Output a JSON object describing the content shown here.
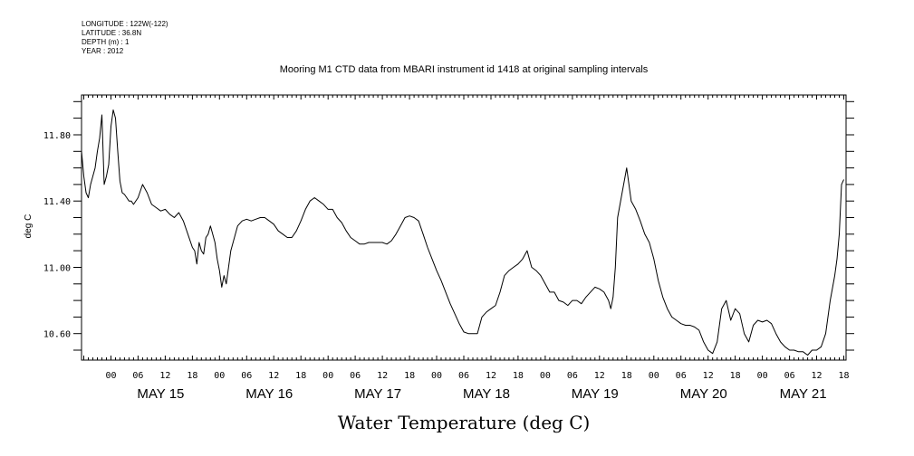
{
  "header": {
    "lines": [
      "LONGITUDE : 122W(-122)",
      "LATITUDE : 36.8N",
      "DEPTH (m) : 1",
      "YEAR : 2012"
    ]
  },
  "chart_data": {
    "type": "line",
    "title": "Mooring M1 CTD data from MBARI instrument id 1418 at original sampling intervals",
    "xlabel": "Water Temperature (deg C)",
    "ylabel": "deg C",
    "ylim": [
      10.44,
      12.04
    ],
    "xlim_hours_from_may15_00": [
      -6.5,
      162.5
    ],
    "yticks": [
      10.6,
      11.0,
      11.4,
      11.8
    ],
    "ytick_labels": [
      "10.60",
      "11.00",
      "11.40",
      "11.80"
    ],
    "hour_ticks": [
      {
        "t": 0,
        "label": "00"
      },
      {
        "t": 6,
        "label": "06"
      },
      {
        "t": 12,
        "label": "12"
      },
      {
        "t": 18,
        "label": "18"
      },
      {
        "t": 24,
        "label": "00"
      },
      {
        "t": 30,
        "label": "06"
      },
      {
        "t": 36,
        "label": "12"
      },
      {
        "t": 42,
        "label": "18"
      },
      {
        "t": 48,
        "label": "00"
      },
      {
        "t": 54,
        "label": "06"
      },
      {
        "t": 60,
        "label": "12"
      },
      {
        "t": 66,
        "label": "18"
      },
      {
        "t": 72,
        "label": "00"
      },
      {
        "t": 78,
        "label": "06"
      },
      {
        "t": 84,
        "label": "12"
      },
      {
        "t": 90,
        "label": "18"
      },
      {
        "t": 96,
        "label": "00"
      },
      {
        "t": 102,
        "label": "06"
      },
      {
        "t": 108,
        "label": "12"
      },
      {
        "t": 114,
        "label": "18"
      },
      {
        "t": 120,
        "label": "00"
      },
      {
        "t": 126,
        "label": "06"
      },
      {
        "t": 132,
        "label": "12"
      },
      {
        "t": 138,
        "label": "18"
      },
      {
        "t": 144,
        "label": "00"
      },
      {
        "t": 150,
        "label": "06"
      },
      {
        "t": 156,
        "label": "12"
      },
      {
        "t": 162,
        "label": "18"
      }
    ],
    "day_labels": [
      {
        "t": 11,
        "label": "MAY 15"
      },
      {
        "t": 35,
        "label": "MAY 16"
      },
      {
        "t": 59,
        "label": "MAY 17"
      },
      {
        "t": 83,
        "label": "MAY 18"
      },
      {
        "t": 107,
        "label": "MAY 19"
      },
      {
        "t": 131,
        "label": "MAY 20"
      },
      {
        "t": 153,
        "label": "MAY 21"
      }
    ],
    "series": [
      {
        "x": [
          -6.5,
          -6,
          -5.5,
          -5,
          -4.5,
          -4,
          -3.5,
          -3,
          -2.5,
          -2,
          -1.5,
          -1,
          -0.5,
          0,
          0.5,
          1,
          1.5,
          2,
          2.5,
          3,
          3.5,
          4,
          4.5,
          5,
          6,
          7,
          8,
          9,
          10,
          11,
          12,
          13,
          14,
          15,
          16,
          17,
          18,
          18.5,
          19,
          19.5,
          20,
          20.5,
          21,
          21.5,
          22,
          22.5,
          23,
          23.5,
          24,
          24.5,
          25,
          25.5,
          26,
          26.5,
          27,
          28,
          29,
          30,
          31,
          32,
          33,
          34,
          35,
          36,
          37,
          38,
          39,
          40,
          41,
          42,
          43,
          44,
          45,
          46,
          47,
          48,
          49,
          50,
          51,
          52,
          53,
          54,
          55,
          56,
          57,
          58,
          59,
          60,
          61,
          62,
          63,
          64,
          65,
          66,
          67,
          68,
          69,
          70,
          71,
          72,
          73,
          74,
          75,
          76,
          77,
          78,
          79,
          80,
          81,
          82,
          83,
          84,
          85,
          86,
          87,
          88,
          89,
          90,
          91,
          92,
          93,
          94,
          95,
          96,
          97,
          98,
          99,
          100,
          101,
          102,
          103,
          104,
          105,
          106,
          107,
          108,
          109,
          110,
          110.5,
          111,
          111.5,
          112,
          113,
          114,
          115,
          116,
          117,
          118,
          119,
          120,
          121,
          122,
          123,
          124,
          125,
          126,
          127,
          128,
          129,
          130,
          131,
          132,
          133,
          134,
          135,
          136,
          137,
          138,
          139,
          140,
          141,
          142,
          143,
          144,
          145,
          146,
          147,
          148,
          149,
          150,
          151,
          152,
          153,
          154,
          155,
          156,
          157,
          158,
          159,
          160,
          160.5,
          161,
          161.5,
          162
        ],
        "y": [
          11.7,
          11.55,
          11.45,
          11.42,
          11.5,
          11.55,
          11.6,
          11.7,
          11.78,
          11.92,
          11.5,
          11.55,
          11.62,
          11.85,
          11.95,
          11.9,
          11.7,
          11.52,
          11.45,
          11.44,
          11.42,
          11.4,
          11.4,
          11.38,
          11.42,
          11.5,
          11.45,
          11.38,
          11.36,
          11.34,
          11.35,
          11.32,
          11.3,
          11.33,
          11.28,
          11.2,
          11.12,
          11.1,
          11.02,
          11.15,
          11.1,
          11.08,
          11.18,
          11.2,
          11.25,
          11.2,
          11.15,
          11.05,
          10.98,
          10.88,
          10.95,
          10.9,
          11.0,
          11.1,
          11.15,
          11.25,
          11.28,
          11.29,
          11.28,
          11.29,
          11.3,
          11.3,
          11.28,
          11.26,
          11.22,
          11.2,
          11.18,
          11.18,
          11.22,
          11.28,
          11.35,
          11.4,
          11.42,
          11.4,
          11.38,
          11.35,
          11.35,
          11.3,
          11.27,
          11.22,
          11.18,
          11.16,
          11.14,
          11.14,
          11.15,
          11.15,
          11.15,
          11.15,
          11.14,
          11.16,
          11.2,
          11.25,
          11.3,
          11.31,
          11.3,
          11.28,
          11.2,
          11.12,
          11.05,
          10.98,
          10.92,
          10.85,
          10.78,
          10.72,
          10.66,
          10.61,
          10.6,
          10.6,
          10.6,
          10.7,
          10.73,
          10.75,
          10.77,
          10.85,
          10.95,
          10.98,
          11.0,
          11.02,
          11.05,
          11.1,
          11.0,
          10.98,
          10.95,
          10.9,
          10.85,
          10.85,
          10.8,
          10.79,
          10.77,
          10.8,
          10.8,
          10.78,
          10.82,
          10.85,
          10.88,
          10.87,
          10.85,
          10.8,
          10.75,
          10.82,
          11.0,
          11.3,
          11.45,
          11.6,
          11.4,
          11.35,
          11.28,
          11.2,
          11.15,
          11.05,
          10.92,
          10.82,
          10.75,
          10.7,
          10.68,
          10.66,
          10.65,
          10.65,
          10.64,
          10.62,
          10.55,
          10.5,
          10.48,
          10.55,
          10.75,
          10.8,
          10.68,
          10.75,
          10.72,
          10.6,
          10.55,
          10.65,
          10.68,
          10.67,
          10.68,
          10.66,
          10.6,
          10.55,
          10.52,
          10.5,
          10.5,
          10.49,
          10.49,
          10.47,
          10.5,
          10.5,
          10.52,
          10.6,
          10.8,
          10.95,
          11.05,
          11.2,
          11.5,
          11.53
        ]
      }
    ],
    "grid": false,
    "legend": "none"
  }
}
